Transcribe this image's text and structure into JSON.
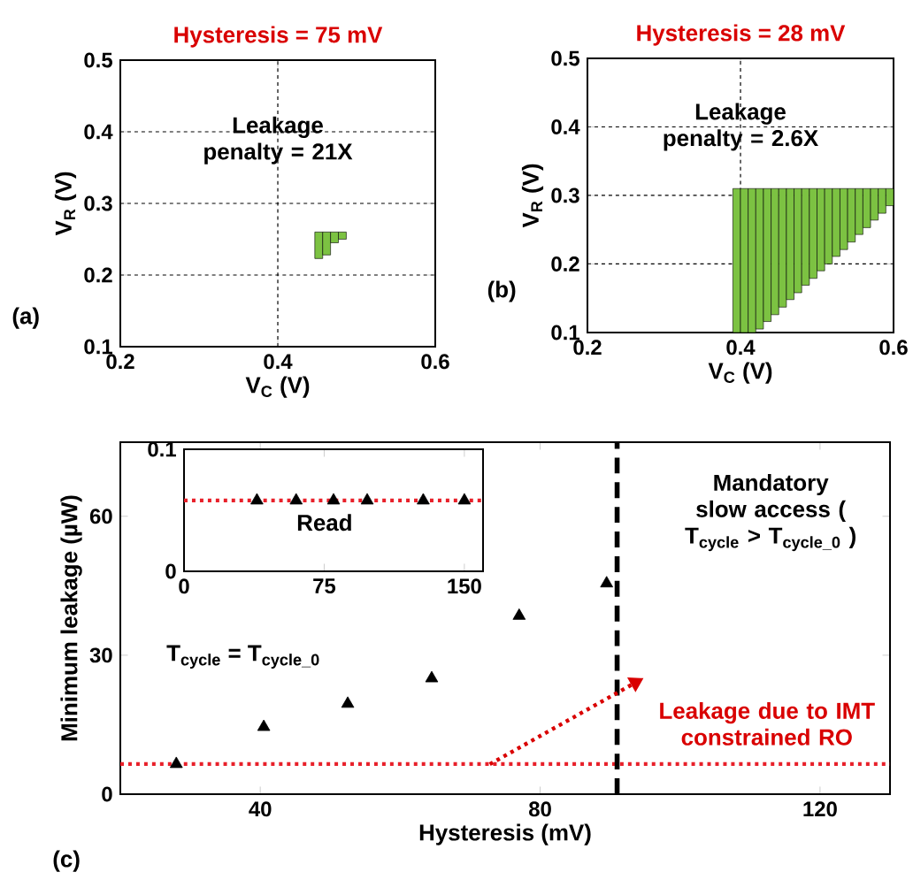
{
  "chart_data": [
    {
      "type": "bar",
      "title": "Hysteresis = 75 mV",
      "xlabel": "V$_{C}$ (V)",
      "ylabel": "V$_{R}$ (V)",
      "xlim": [
        0.2,
        0.6
      ],
      "ylim": [
        0.1,
        0.5
      ],
      "xticks": [
        0.2,
        0.4,
        0.6
      ],
      "yticks": [
        0.1,
        0.2,
        0.3,
        0.4,
        0.5
      ],
      "grid": true,
      "annotations": [
        "(a)",
        "Leakage penalty = 21X"
      ],
      "series": [
        {
          "x": [
            0.452,
            0.462,
            0.472,
            0.482
          ],
          "base": [
            0.223,
            0.228,
            0.245,
            0.25
          ],
          "values": [
            0.037,
            0.032,
            0.015,
            0.01
          ],
          "color": "#7cc242"
        }
      ]
    },
    {
      "type": "bar",
      "title": "Hysteresis = 28 mV",
      "xlabel": "V$_{C}$ (V)",
      "ylabel": "V$_{R}$ (V)",
      "xlim": [
        0.2,
        0.6
      ],
      "ylim": [
        0.1,
        0.5
      ],
      "xticks": [
        0.2,
        0.4,
        0.6
      ],
      "yticks": [
        0.1,
        0.2,
        0.3,
        0.4,
        0.5
      ],
      "grid": true,
      "annotations": [
        "(b)",
        "Leakage penalty = 2.6X"
      ],
      "series": [
        {
          "x": [
            0.395,
            0.405,
            0.415,
            0.425,
            0.435,
            0.445,
            0.455,
            0.465,
            0.475,
            0.485,
            0.495,
            0.505,
            0.515,
            0.525,
            0.535,
            0.545,
            0.555,
            0.565,
            0.575,
            0.585,
            0.595
          ],
          "base": [
            0.1,
            0.1,
            0.1,
            0.105,
            0.116,
            0.126,
            0.137,
            0.148,
            0.158,
            0.169,
            0.179,
            0.19,
            0.2,
            0.211,
            0.221,
            0.232,
            0.243,
            0.253,
            0.264,
            0.274,
            0.285
          ],
          "values": [
            0.21,
            0.21,
            0.21,
            0.205,
            0.194,
            0.184,
            0.173,
            0.162,
            0.152,
            0.141,
            0.131,
            0.12,
            0.11,
            0.099,
            0.089,
            0.078,
            0.067,
            0.057,
            0.046,
            0.036,
            0.025
          ],
          "color": "#7cc242"
        }
      ]
    },
    {
      "type": "scatter",
      "xlabel": "Hysteresis (mV)",
      "ylabel": "Minimum leakage (µW)",
      "xlim": [
        20,
        130
      ],
      "ylim": [
        0,
        76
      ],
      "xticks": [
        40,
        80,
        120
      ],
      "yticks": [
        0,
        30,
        60
      ],
      "marker": "triangle",
      "annotations": [
        "(c)",
        "T$_{cycle}$ = T$_{cycle_0}$",
        "Mandatory slow access ( T$_{cycle}$ > T$_{cycle_0}$ )",
        "Leakage due to IMT constrained RO"
      ],
      "ref_lines": [
        {
          "axis": "y",
          "value": 6.5,
          "color": "#e8202a",
          "line_style": "dotted"
        },
        {
          "axis": "x",
          "value": 91,
          "color": "#000000",
          "line_style": "dashed"
        }
      ],
      "series": [
        {
          "x": [
            28,
            40.5,
            52.5,
            64.5,
            77,
            89.5
          ],
          "values": [
            6.5,
            14.5,
            19.5,
            25,
            38.5,
            45.5
          ],
          "color": "#000000"
        }
      ]
    },
    {
      "type": "scatter",
      "xlim": [
        0,
        160
      ],
      "ylim": [
        0,
        0.1
      ],
      "xticks": [
        0,
        75,
        150
      ],
      "yticks": [
        0,
        0.1
      ],
      "marker": "triangle",
      "annotations": [
        "Read"
      ],
      "ref_lines": [
        {
          "axis": "y",
          "value": 0.058,
          "color": "#e8202a",
          "line_style": "dotted"
        }
      ],
      "series": [
        {
          "x": [
            39,
            60,
            80,
            98,
            128,
            150
          ],
          "values": [
            0.058,
            0.058,
            0.058,
            0.058,
            0.058,
            0.058
          ],
          "color": "#000000"
        }
      ]
    }
  ]
}
